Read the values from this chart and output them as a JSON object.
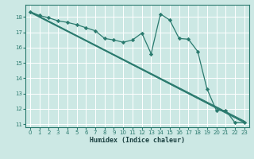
{
  "xlabel": "Humidex (Indice chaleur)",
  "bg_color": "#cce8e4",
  "grid_color": "#ffffff",
  "line_color": "#2a7a6e",
  "xlim": [
    -0.5,
    23.5
  ],
  "ylim": [
    10.8,
    18.8
  ],
  "xticks": [
    0,
    1,
    2,
    3,
    4,
    5,
    6,
    7,
    8,
    9,
    10,
    11,
    12,
    13,
    14,
    15,
    16,
    17,
    18,
    19,
    20,
    21,
    22,
    23
  ],
  "yticks": [
    11,
    12,
    13,
    14,
    15,
    16,
    17,
    18
  ],
  "straight_line1": {
    "x": [
      0,
      23
    ],
    "y": [
      18.35,
      11.1
    ]
  },
  "straight_line2": {
    "x": [
      0,
      23
    ],
    "y": [
      18.35,
      11.2
    ]
  },
  "straight_line3": {
    "x": [
      0,
      23
    ],
    "y": [
      18.3,
      11.15
    ]
  },
  "zigzag": {
    "x": [
      0,
      1,
      2,
      3,
      4,
      5,
      6,
      7,
      8,
      9,
      10,
      11,
      12,
      13,
      14,
      15,
      16,
      17,
      18,
      19,
      20,
      21,
      22,
      23
    ],
    "y": [
      18.35,
      18.1,
      17.95,
      17.75,
      17.65,
      17.5,
      17.3,
      17.1,
      16.6,
      16.5,
      16.35,
      16.5,
      16.95,
      15.6,
      18.2,
      17.8,
      16.6,
      16.55,
      15.75,
      13.3,
      11.9,
      11.9,
      11.1,
      11.1
    ]
  }
}
